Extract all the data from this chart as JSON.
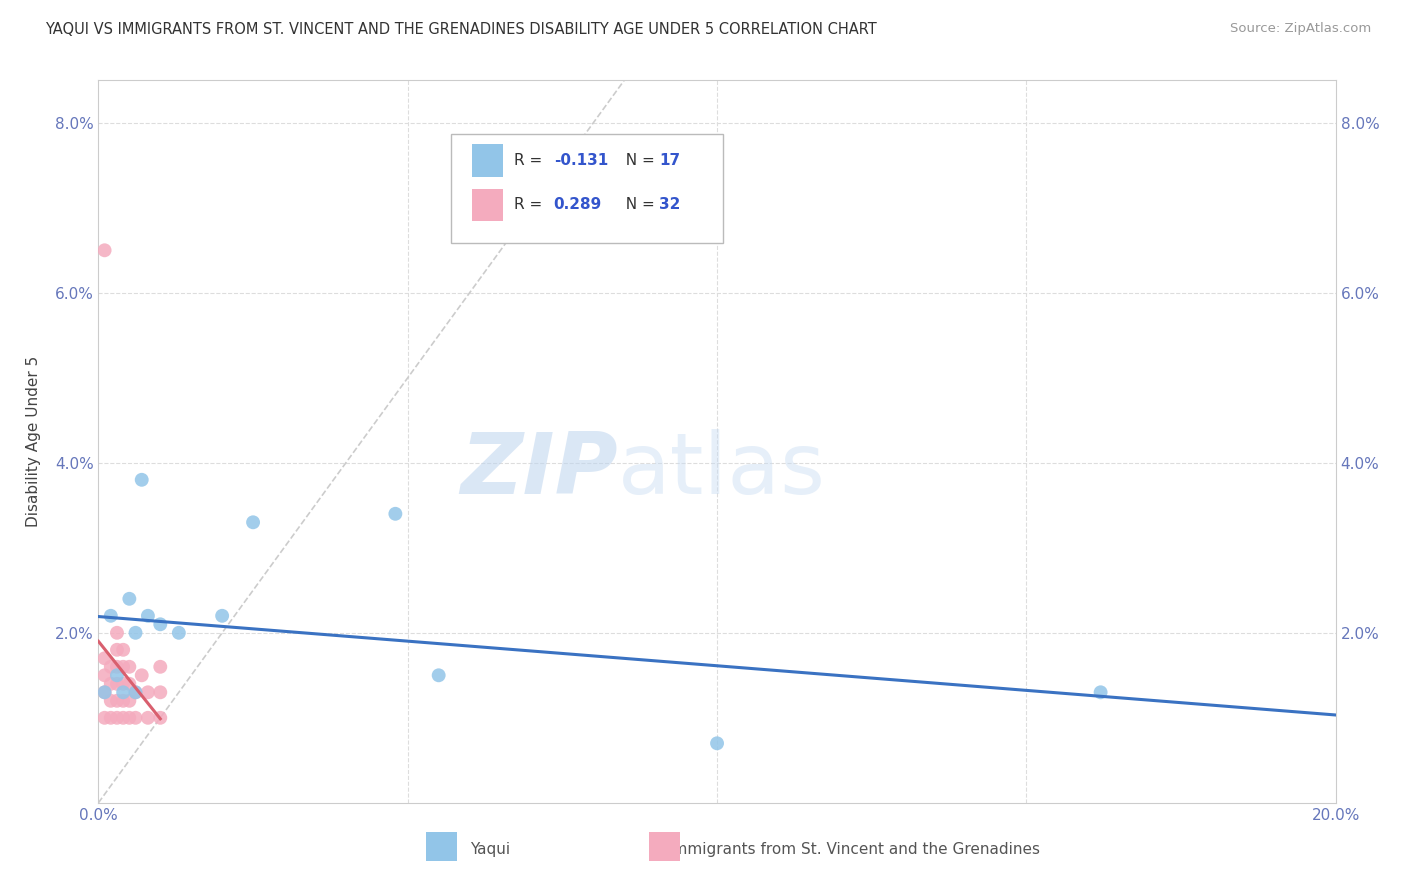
{
  "title": "YAQUI VS IMMIGRANTS FROM ST. VINCENT AND THE GRENADINES DISABILITY AGE UNDER 5 CORRELATION CHART",
  "source": "Source: ZipAtlas.com",
  "ylabel": "Disability Age Under 5",
  "xlim": [
    0.0,
    0.2
  ],
  "ylim": [
    0.0,
    0.085
  ],
  "xticks": [
    0.0,
    0.05,
    0.1,
    0.15,
    0.2
  ],
  "yticks": [
    0.0,
    0.02,
    0.04,
    0.06,
    0.08
  ],
  "xticklabels": [
    "0.0%",
    "",
    "",
    "",
    "20.0%"
  ],
  "yticklabels": [
    "",
    "2.0%",
    "4.0%",
    "6.0%",
    "8.0%"
  ],
  "r_yaqui": -0.131,
  "n_yaqui": 17,
  "r_svg": 0.289,
  "n_svg": 32,
  "yaqui_color": "#92C5E8",
  "svg_color": "#F4ABBE",
  "yaqui_line_color": "#3A72C2",
  "svg_line_color": "#D95F6E",
  "diagonal_color": "#CCCCCC",
  "watermark_zip": "ZIP",
  "watermark_atlas": "atlas",
  "yaqui_x": [
    0.001,
    0.002,
    0.003,
    0.004,
    0.005,
    0.006,
    0.006,
    0.007,
    0.008,
    0.01,
    0.013,
    0.02,
    0.025,
    0.048,
    0.055,
    0.1,
    0.162
  ],
  "yaqui_y": [
    0.013,
    0.022,
    0.015,
    0.013,
    0.024,
    0.02,
    0.013,
    0.038,
    0.022,
    0.021,
    0.02,
    0.022,
    0.033,
    0.034,
    0.015,
    0.007,
    0.013
  ],
  "svg_x": [
    0.001,
    0.001,
    0.001,
    0.001,
    0.002,
    0.002,
    0.002,
    0.002,
    0.003,
    0.003,
    0.003,
    0.003,
    0.003,
    0.003,
    0.004,
    0.004,
    0.004,
    0.004,
    0.004,
    0.005,
    0.005,
    0.005,
    0.005,
    0.006,
    0.006,
    0.007,
    0.008,
    0.008,
    0.01,
    0.01,
    0.01,
    0.001
  ],
  "svg_y": [
    0.01,
    0.013,
    0.015,
    0.017,
    0.01,
    0.012,
    0.014,
    0.016,
    0.01,
    0.012,
    0.014,
    0.016,
    0.018,
    0.02,
    0.01,
    0.012,
    0.014,
    0.016,
    0.018,
    0.01,
    0.012,
    0.014,
    0.016,
    0.01,
    0.013,
    0.015,
    0.01,
    0.013,
    0.01,
    0.013,
    0.016,
    0.065
  ]
}
